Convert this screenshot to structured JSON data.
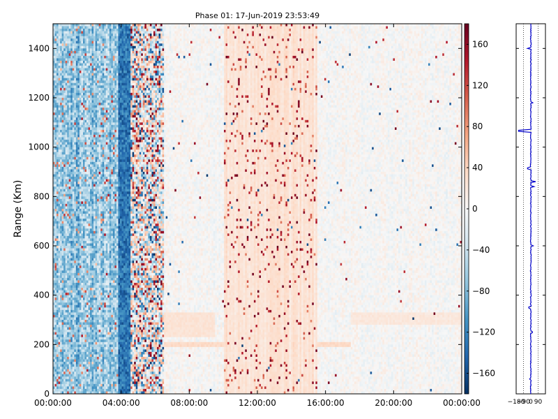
{
  "chart_data": [
    {
      "type": "heatmap",
      "title": "Phase 01: 17-Jun-2019 23:53:49",
      "xlabel": "",
      "ylabel": "Range (Km)",
      "x_range": [
        "00:00:00",
        "24:00:00"
      ],
      "x_ticks": [
        "00:00:00",
        "04:00:00",
        "08:00:00",
        "12:00:00",
        "16:00:00",
        "20:00:00",
        "00:00:00"
      ],
      "y_range": [
        0,
        1500
      ],
      "y_ticks": [
        0,
        200,
        400,
        600,
        800,
        1000,
        1200,
        1400
      ],
      "colormap": "RdBu_r",
      "value_range": [
        -180,
        180
      ],
      "colorbar_ticks": [
        -160,
        -120,
        -80,
        -40,
        0,
        40,
        80,
        120,
        160
      ],
      "grid": false,
      "features": [
        {
          "name": "noisy band",
          "x_start_hour": 0.0,
          "x_end_hour": 6.5,
          "range_km": [
            0,
            1500
          ]
        },
        {
          "name": "layer",
          "x_start_hour": 6.5,
          "x_end_hour": 17.5,
          "range_km": [
            190,
            210
          ],
          "value": 35
        },
        {
          "name": "layer",
          "x_start_hour": 6.5,
          "x_end_hour": 9.5,
          "range_km": [
            230,
            330
          ],
          "value": 25
        },
        {
          "name": "layer",
          "x_start_hour": 17.5,
          "x_end_hour": 24.0,
          "range_km": [
            280,
            330
          ],
          "value": 20
        },
        {
          "name": "warm band",
          "x_start_hour": 10.0,
          "x_end_hour": 15.5,
          "range_km": [
            0,
            1500
          ],
          "value": 25
        }
      ]
    },
    {
      "type": "line",
      "title": "",
      "xlabel": "",
      "ylabel": "",
      "x_range": [
        -180,
        180
      ],
      "x_ticks": [
        "−180",
        "−90",
        "0",
        "90"
      ],
      "y_range": [
        0,
        1500
      ],
      "grid": "vertical dotted",
      "series": [
        {
          "color": "#0000cc",
          "baseline": 0,
          "spikes": [
            {
              "range_km": 1065,
              "value": -150
            },
            {
              "range_km": 1400,
              "value": -40
            },
            {
              "range_km": 915,
              "value": -40
            },
            {
              "range_km": 860,
              "value": 60
            },
            {
              "range_km": 840,
              "value": 40
            },
            {
              "range_km": 600,
              "value": 30
            },
            {
              "range_km": 1180,
              "value": 25
            },
            {
              "range_km": 350,
              "value": -25
            },
            {
              "range_km": 250,
              "value": 20
            },
            {
              "range_km": 60,
              "value": -15
            }
          ]
        }
      ]
    }
  ]
}
